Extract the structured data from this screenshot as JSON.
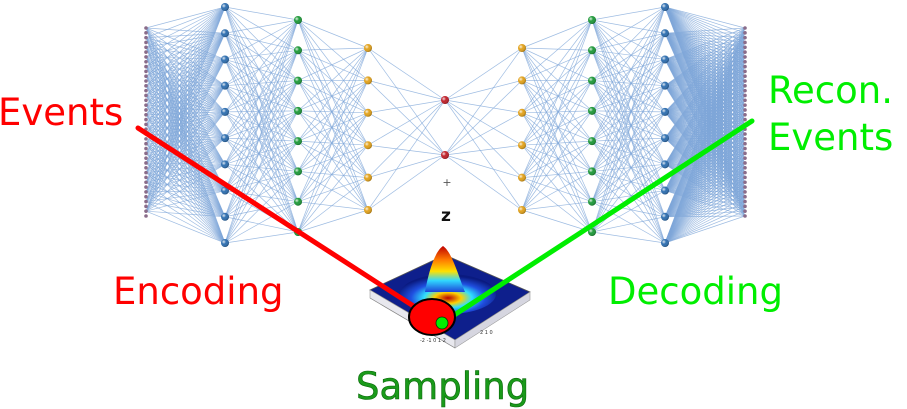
{
  "labels": {
    "input": "Events",
    "output_line1": "Recon.",
    "output_line2": "Events",
    "encoder": "Encoding",
    "decoder": "Decoding",
    "sampling": "Sampling",
    "latent": "z"
  },
  "network": {
    "layer_node_counts": [
      40,
      10,
      8,
      6,
      2,
      6,
      8,
      10,
      40
    ],
    "layer_colors": [
      "#8a6c8a",
      "#2f6fb0",
      "#1f9a3a",
      "#e2a21c",
      "#c0202a",
      "#e2a21c",
      "#1f9a3a",
      "#2f6fb0",
      "#8a6c8a"
    ],
    "edge_color": "#7ea6d8"
  },
  "colors": {
    "encoding": "#ff0000",
    "decoding": "#00ee00",
    "sampling": "#1a9a1a",
    "latent_text": "#111111"
  }
}
